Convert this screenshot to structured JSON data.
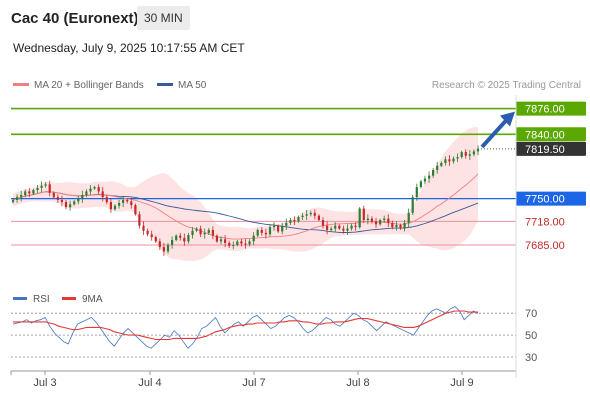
{
  "header": {
    "title": "Cac 40 (Euronext)",
    "interval": "30 MIN",
    "datetime": "Wednesday, July 9, 2025 10:17:55 AM CET"
  },
  "legend": {
    "ma20": "MA 20 + Bollinger Bands",
    "ma50": "MA 50",
    "credit": "Research © 2025 Trading Central"
  },
  "rsi_legend": {
    "rsi": "RSI",
    "ma9": "9MA"
  },
  "colors": {
    "up": "#2e7d32",
    "down": "#c62828",
    "ma20": "#f08080",
    "ma50": "#3a5a99",
    "band": "#fde3e3",
    "resistance": "#5aa800",
    "pivot": "#1a66e6",
    "support": "#ee8fa0",
    "arrow": "#2a5db0",
    "current": "#333333",
    "rsi": "#4472c4",
    "rsi_ma": "#e53935"
  },
  "chart_data": [
    {
      "type": "candlestick",
      "price_range": [
        7650,
        7895
      ],
      "x_labels": [
        "Jul 3",
        "Jul 4",
        "Jul 7",
        "Jul 8",
        "Jul 9"
      ],
      "levels": [
        {
          "value": 7876.0,
          "label": "7876.00",
          "kind": "resistance"
        },
        {
          "value": 7840.0,
          "label": "7840.00",
          "kind": "resistance"
        },
        {
          "value": 7819.5,
          "label": "7819.50",
          "kind": "current"
        },
        {
          "value": 7750.0,
          "label": "7750.00",
          "kind": "pivot"
        },
        {
          "value": 7718.0,
          "label": "7718.00",
          "kind": "support"
        },
        {
          "value": 7685.0,
          "label": "7685.00",
          "kind": "support"
        }
      ],
      "closes": [
        7748,
        7752,
        7755,
        7760,
        7757,
        7762,
        7765,
        7768,
        7770,
        7758,
        7752,
        7748,
        7745,
        7738,
        7742,
        7746,
        7750,
        7755,
        7760,
        7764,
        7766,
        7760,
        7752,
        7745,
        7735,
        7740,
        7744,
        7748,
        7746,
        7741,
        7728,
        7712,
        7705,
        7700,
        7696,
        7690,
        7682,
        7676,
        7685,
        7692,
        7698,
        7695,
        7690,
        7699,
        7705,
        7708,
        7700,
        7702,
        7706,
        7698,
        7690,
        7693,
        7688,
        7684,
        7685,
        7690,
        7687,
        7686,
        7690,
        7698,
        7706,
        7702,
        7700,
        7710,
        7712,
        7704,
        7712,
        7716,
        7720,
        7718,
        7724,
        7726,
        7728,
        7730,
        7726,
        7720,
        7712,
        7706,
        7708,
        7712,
        7708,
        7705,
        7708,
        7712,
        7710,
        7736,
        7720,
        7722,
        7718,
        7714,
        7720,
        7722,
        7716,
        7710,
        7713,
        7708,
        7716,
        7730,
        7752,
        7766,
        7774,
        7778,
        7782,
        7790,
        7796,
        7800,
        7805,
        7802,
        7806,
        7808,
        7815,
        7810,
        7812,
        7816,
        7819.5
      ]
    },
    {
      "type": "line",
      "title": "RSI",
      "y_ticks": [
        70,
        50,
        30
      ],
      "ylim": [
        20,
        82
      ],
      "series": [
        {
          "name": "RSI",
          "values": [
            60,
            61,
            62,
            64,
            61,
            63,
            64,
            66,
            58,
            52,
            48,
            44,
            42,
            52,
            60,
            62,
            64,
            66,
            62,
            56,
            50,
            44,
            40,
            46,
            52,
            56,
            52,
            48,
            44,
            40,
            38,
            42,
            46,
            50,
            48,
            54,
            50,
            44,
            38,
            42,
            48,
            56,
            58,
            62,
            66,
            58,
            52,
            56,
            60,
            62,
            58,
            62,
            66,
            68,
            64,
            60,
            56,
            58,
            62,
            66,
            68,
            66,
            62,
            56,
            52,
            54,
            58,
            62,
            66,
            64,
            60,
            58,
            62,
            66,
            70,
            68,
            64,
            62,
            58,
            54,
            58,
            62,
            60,
            58,
            56,
            54,
            52,
            50,
            56,
            62,
            68,
            72,
            74,
            72,
            70,
            74,
            76,
            72,
            64,
            68,
            72,
            70
          ]
        },
        {
          "name": "9MA",
          "values": [
            62,
            62,
            62,
            62,
            62,
            62,
            62,
            62,
            61,
            60,
            58,
            57,
            56,
            55,
            55,
            56,
            57,
            57,
            57,
            57,
            56,
            55,
            53,
            52,
            51,
            50,
            50,
            50,
            49,
            48,
            47,
            46,
            46,
            46,
            46,
            47,
            47,
            47,
            47,
            47,
            47,
            48,
            49,
            51,
            53,
            54,
            55,
            57,
            58,
            59,
            59,
            60,
            60,
            61,
            61,
            61,
            61,
            61,
            62,
            62,
            63,
            63,
            63,
            62,
            62,
            61,
            60,
            60,
            61,
            61,
            62,
            62,
            62,
            63,
            64,
            65,
            65,
            65,
            64,
            63,
            62,
            61,
            60,
            59,
            58,
            57,
            57,
            57,
            58,
            60,
            62,
            64,
            66,
            68,
            70,
            71,
            72,
            72,
            72,
            71,
            71,
            71
          ]
        }
      ]
    }
  ]
}
